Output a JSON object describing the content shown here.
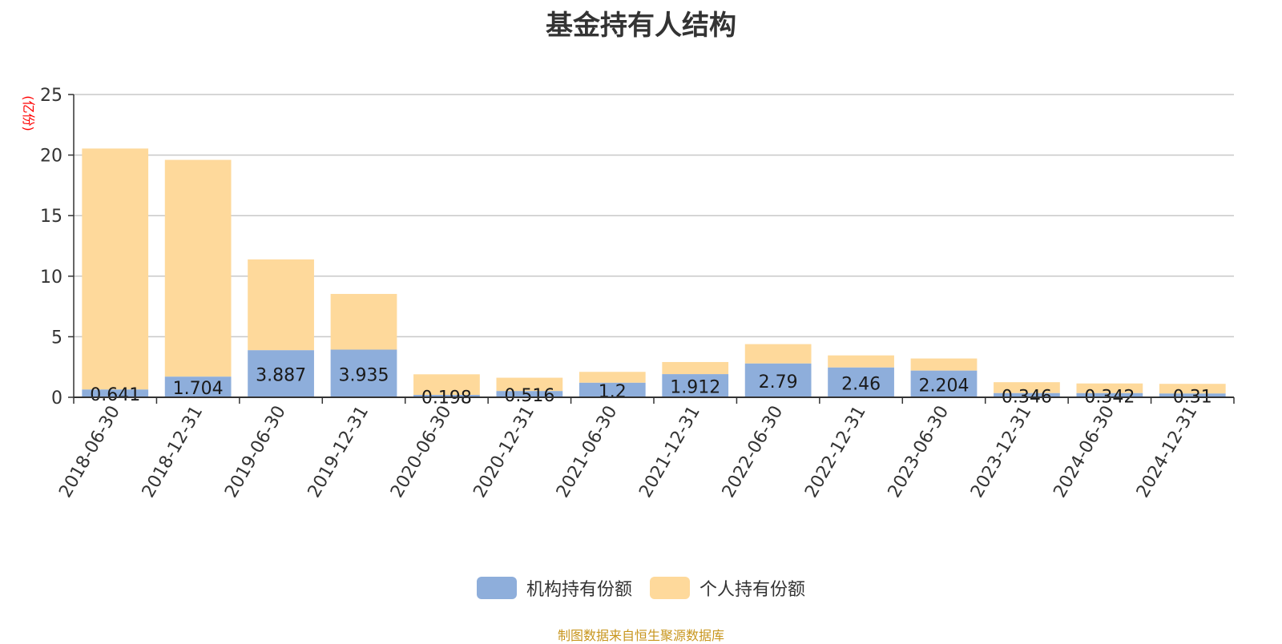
{
  "chart_data": {
    "type": "bar",
    "stacked": true,
    "title": "基金持有人结构",
    "ylabel": "(亿份)",
    "ylim": [
      0,
      25
    ],
    "yticks": [
      0,
      5,
      10,
      15,
      20,
      25
    ],
    "grid": true,
    "legend_position": "bottom",
    "categories": [
      "2018-06-30",
      "2018-12-31",
      "2019-06-30",
      "2019-12-31",
      "2020-06-30",
      "2020-12-31",
      "2021-06-30",
      "2021-12-31",
      "2022-06-30",
      "2022-12-31",
      "2023-06-30",
      "2023-12-31",
      "2024-06-30",
      "2024-12-31"
    ],
    "series": [
      {
        "name": "机构持有份额",
        "color": "#8eaedb",
        "values": [
          0.641,
          1.704,
          3.887,
          3.935,
          0.198,
          0.516,
          1.2,
          1.912,
          2.79,
          2.46,
          2.204,
          0.346,
          0.342,
          0.31
        ],
        "labels": [
          "0.641",
          "1.704",
          "3.887",
          "3.935",
          "0.198",
          "0.516",
          "1.2",
          "1.912",
          "2.79",
          "2.46",
          "2.204",
          "0.346",
          "0.342",
          "0.31"
        ]
      },
      {
        "name": "个人持有份额",
        "color": "#fed99b",
        "values": [
          19.9,
          17.9,
          7.5,
          4.6,
          1.7,
          1.1,
          0.9,
          1.0,
          1.6,
          1.0,
          1.0,
          0.9,
          0.8,
          0.8
        ]
      }
    ]
  },
  "footer": {
    "source": "制图数据来自恒生聚源数据库"
  }
}
